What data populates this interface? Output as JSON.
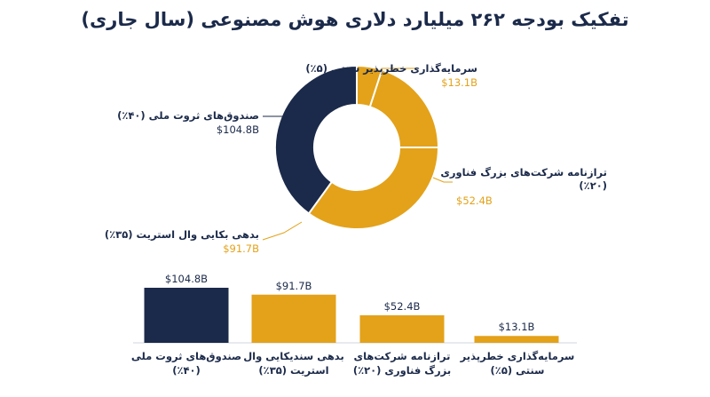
{
  "title": "تفکیک بودجه ۲۶۲ میلیارد دلاری هوش مصنوعی (سال جاری)",
  "colors": {
    "navy": "#1b2a4a",
    "gold": "#e3a21a",
    "axis": "#cfd4dc"
  },
  "chart_data": [
    {
      "type": "pie",
      "style": "donut",
      "slices": [
        {
          "label": "سرمایه‌گذاری خطرپذیر سنتی (۵٪)",
          "value": 13.1,
          "value_label": "$13.1B",
          "color": "#e3a21a"
        },
        {
          "label": "ترازنامه شرکت‌های بزرگ فناوری (۲۰٪)",
          "value": 52.4,
          "value_label": "$52.4B",
          "color": "#e3a21a"
        },
        {
          "label": "بدهی بکایی وال استریت (۳۵٪)",
          "value": 91.7,
          "value_label": "$91.7B",
          "color": "#e3a21a"
        },
        {
          "label": "صندوق‌های ثروت ملی (۴۰٪)",
          "value": 104.8,
          "value_label": "$104.8B",
          "color": "#1b2a4a"
        }
      ]
    },
    {
      "type": "bar",
      "categories": [
        "صندوق‌های ثروت ملی (۴۰٪)",
        "بدهی سندیکایی وال استریت (۳۵٪)",
        "ترازنامه شرکت‌های بزرگ فناوری (۲۰٪)",
        "سرمایه‌گذاری خطرپذیر سنتی (۵٪)"
      ],
      "values": [
        104.8,
        91.7,
        52.4,
        13.1
      ],
      "value_labels": [
        "$104.8B",
        "$91.7B",
        "$52.4B",
        "$13.1B"
      ],
      "colors": [
        "#1b2a4a",
        "#e3a21a",
        "#e3a21a",
        "#e3a21a"
      ],
      "ylim": [
        0,
        104.8
      ]
    }
  ]
}
